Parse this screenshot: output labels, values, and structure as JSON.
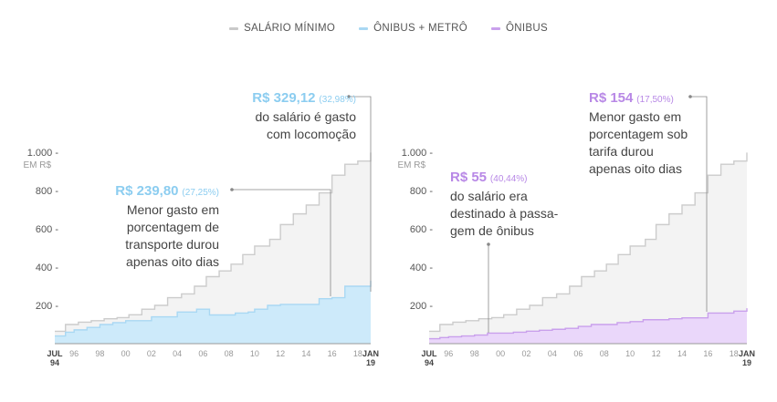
{
  "legend": [
    {
      "label": "SALÁRIO MÍNIMO",
      "color": "#c9c9c9"
    },
    {
      "label": "ÔNIBUS + METRÔ",
      "color": "#a9d8f3"
    },
    {
      "label": "ÔNIBUS",
      "color": "#c9a0ec"
    }
  ],
  "colors": {
    "salario_fill": "#f3f3f3",
    "salario_line": "#cccccc",
    "metro_fill": "#cdeafa",
    "metro_line": "#a9d8f3",
    "metro_text": "#8ccdf0",
    "onibus_fill": "#ead7fa",
    "onibus_line": "#c9a0ec",
    "onibus_text": "#b888e6"
  },
  "y_unit_label": "EM R$",
  "x_ticks": [
    {
      "x": 1994.5,
      "lines": [
        "JUL",
        "94"
      ],
      "bold": true
    },
    {
      "x": 1996,
      "lines": [
        "96"
      ],
      "bold": false
    },
    {
      "x": 1998,
      "lines": [
        "98"
      ],
      "bold": false
    },
    {
      "x": 2000,
      "lines": [
        "00"
      ],
      "bold": false
    },
    {
      "x": 2002,
      "lines": [
        "02"
      ],
      "bold": false
    },
    {
      "x": 2004,
      "lines": [
        "04"
      ],
      "bold": false
    },
    {
      "x": 2006,
      "lines": [
        "06"
      ],
      "bold": false
    },
    {
      "x": 2008,
      "lines": [
        "08"
      ],
      "bold": false
    },
    {
      "x": 2010,
      "lines": [
        "10"
      ],
      "bold": false
    },
    {
      "x": 2012,
      "lines": [
        "12"
      ],
      "bold": false
    },
    {
      "x": 2014,
      "lines": [
        "14"
      ],
      "bold": false
    },
    {
      "x": 2016,
      "lines": [
        "16"
      ],
      "bold": false
    },
    {
      "x": 2018,
      "lines": [
        "18"
      ],
      "bold": false
    },
    {
      "x": 2019,
      "lines": [
        "JAN",
        "19"
      ],
      "bold": true
    }
  ],
  "annotations": {
    "left_top": {
      "value": "R$ 329,12",
      "pct": "(32,98%)",
      "lines": [
        "do salário é gasto",
        "com locomoção"
      ]
    },
    "left_mid": {
      "value": "R$ 239,80",
      "pct": "(27,25%)",
      "lines": [
        "Menor gasto em",
        "porcentagem de",
        "transporte durou",
        "apenas oito dias"
      ]
    },
    "right_mid": {
      "value": "R$ 55",
      "pct": "(40,44%)",
      "lines": [
        "do salário era",
        "destinado à passa-",
        "gem de ônibus"
      ]
    },
    "right_top": {
      "value": "R$ 154",
      "pct": "(17,50%)",
      "lines": [
        "Menor gasto em",
        "porcentagem sob",
        "tarifa durou",
        "apenas oito dias"
      ]
    }
  },
  "chart_data": [
    {
      "type": "area",
      "xlim": [
        1994.5,
        2019
      ],
      "ylim": [
        0,
        1000
      ],
      "y_ticks": [
        "200 -",
        "400 -",
        "600 -",
        "800 -",
        "1.000 -"
      ],
      "series": [
        {
          "name": "SALÁRIO MÍNIMO",
          "x": [
            1994.5,
            1995.33,
            1996.33,
            1997.33,
            1998.33,
            1999.33,
            2000.25,
            2001.25,
            2002.25,
            2003.25,
            2004.33,
            2005.33,
            2006.25,
            2007.25,
            2008.17,
            2009.08,
            2010,
            2011.17,
            2012,
            2013,
            2014,
            2015,
            2016,
            2017,
            2018,
            2019
          ],
          "y": [
            64.79,
            100,
            112,
            120,
            130,
            136,
            151,
            180,
            200,
            240,
            260,
            300,
            350,
            380,
            415,
            465,
            510,
            545,
            622,
            678,
            724,
            788,
            880,
            937,
            954,
            998
          ]
        },
        {
          "name": "ÔNIBUS + METRÔ",
          "x": [
            1994.5,
            1995.33,
            1996,
            1997,
            1998,
            1999,
            2000,
            2001,
            2002,
            2003,
            2004,
            2005,
            2005.5,
            2006.5,
            2007.5,
            2008.5,
            2009.5,
            2010,
            2011,
            2012,
            2013,
            2014,
            2015,
            2016,
            2017,
            2018,
            2019
          ],
          "y": [
            40,
            60,
            72,
            85,
            100,
            110,
            120,
            120,
            140,
            140,
            165,
            165,
            180,
            150,
            150,
            160,
            165,
            180,
            200,
            205,
            205,
            205,
            235,
            240,
            300,
            300,
            329.12
          ]
        },
        {
          "name": "ÔNIBUS",
          "x": [
            1994.5,
            1995.33,
            1996,
            1997,
            1998,
            1999,
            2000,
            2001,
            2002,
            2003,
            2004,
            2005,
            2006,
            2007,
            2008,
            2009,
            2010,
            2011,
            2012,
            2013,
            2014,
            2015,
            2016,
            2017,
            2018,
            2019
          ],
          "y": [
            26,
            32,
            36,
            40,
            45,
            55,
            55,
            60,
            65,
            70,
            75,
            80,
            90,
            100,
            100,
            110,
            115,
            125,
            125,
            130,
            135,
            135,
            160,
            160,
            170,
            185
          ]
        }
      ]
    }
  ]
}
